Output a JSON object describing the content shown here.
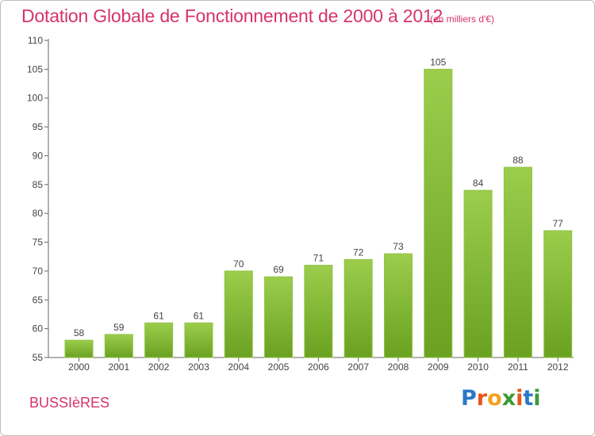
{
  "header": {
    "title": "Dotation Globale de Fonctionnement de 2000 à 2012",
    "unit_note": "(en milliers d'€)"
  },
  "footer": {
    "commune": "BUSSIèRES",
    "logo_text": "Proxiti"
  },
  "colors": {
    "title": "#d6336b",
    "bar_light": "#9ccd4c",
    "bar_dark": "#6aa121",
    "axis": "#555555"
  },
  "chart_data": {
    "type": "bar",
    "categories": [
      "2000",
      "2001",
      "2002",
      "2003",
      "2004",
      "2005",
      "2006",
      "2007",
      "2008",
      "2009",
      "2010",
      "2011",
      "2012"
    ],
    "values": [
      58,
      59,
      61,
      61,
      70,
      69,
      71,
      72,
      73,
      105,
      84,
      88,
      77
    ],
    "data_labels": [
      "58",
      "59",
      "61",
      "61",
      "70",
      "69",
      "71",
      "72",
      "73",
      "105",
      "84",
      "88",
      "77"
    ],
    "yticks": [
      55,
      60,
      65,
      70,
      75,
      80,
      85,
      90,
      95,
      100,
      105,
      110
    ],
    "ylim": [
      55,
      110
    ],
    "xlabel": "",
    "ylabel": "",
    "grid": false,
    "legend": "none"
  }
}
